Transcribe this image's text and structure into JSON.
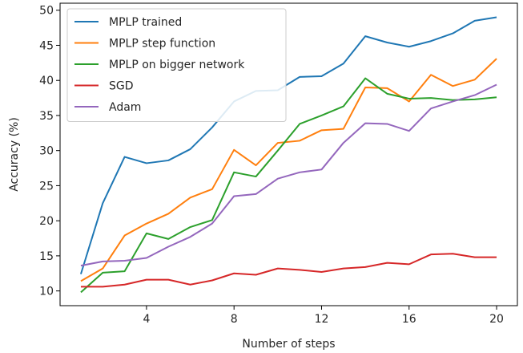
{
  "chart_data": {
    "type": "line",
    "xlabel": "Number of steps",
    "ylabel": "Accuracy (%)",
    "xlim": [
      0.05,
      20.95
    ],
    "ylim": [
      7.9,
      51.0
    ],
    "xticks": [
      4,
      8,
      12,
      16,
      20
    ],
    "yticks": [
      10,
      15,
      20,
      25,
      30,
      35,
      40,
      45,
      50
    ],
    "grid": false,
    "legend_position": "top-left",
    "x": [
      1,
      2,
      3,
      4,
      5,
      6,
      7,
      8,
      9,
      10,
      11,
      12,
      13,
      14,
      15,
      16,
      17,
      18,
      19,
      20
    ],
    "series": [
      {
        "name": "MPLP trained",
        "color": "#1f77b4",
        "values": [
          12.4,
          22.5,
          29.1,
          28.2,
          28.6,
          30.2,
          33.3,
          37.0,
          38.5,
          38.6,
          40.5,
          40.6,
          42.4,
          46.3,
          45.4,
          44.8,
          45.6,
          46.7,
          48.5,
          49.0
        ]
      },
      {
        "name": "MPLP step function",
        "color": "#ff7f0e",
        "values": [
          11.4,
          13.2,
          17.9,
          19.6,
          21.0,
          23.3,
          24.5,
          30.1,
          27.9,
          31.1,
          31.4,
          32.9,
          33.1,
          39.0,
          38.9,
          37.0,
          40.8,
          39.2,
          40.1,
          43.1
        ]
      },
      {
        "name": "MPLP on bigger network",
        "color": "#2ca02c",
        "values": [
          9.8,
          12.6,
          12.8,
          18.2,
          17.4,
          19.1,
          20.1,
          26.9,
          26.3,
          30.0,
          33.8,
          35.0,
          36.3,
          40.3,
          38.1,
          37.4,
          37.5,
          37.2,
          37.3,
          37.6
        ]
      },
      {
        "name": "SGD",
        "color": "#d62728",
        "values": [
          10.6,
          10.6,
          10.9,
          11.6,
          11.6,
          10.9,
          11.5,
          12.5,
          12.3,
          13.2,
          13.0,
          12.7,
          13.2,
          13.4,
          14.0,
          13.8,
          15.2,
          15.3,
          14.8,
          14.8
        ]
      },
      {
        "name": "Adam",
        "color": "#9467bd",
        "values": [
          13.6,
          14.2,
          14.3,
          14.7,
          16.3,
          17.7,
          19.6,
          23.5,
          23.8,
          26.0,
          26.9,
          27.3,
          31.1,
          33.9,
          33.8,
          32.8,
          36.0,
          37.0,
          37.9,
          39.4
        ]
      }
    ]
  }
}
